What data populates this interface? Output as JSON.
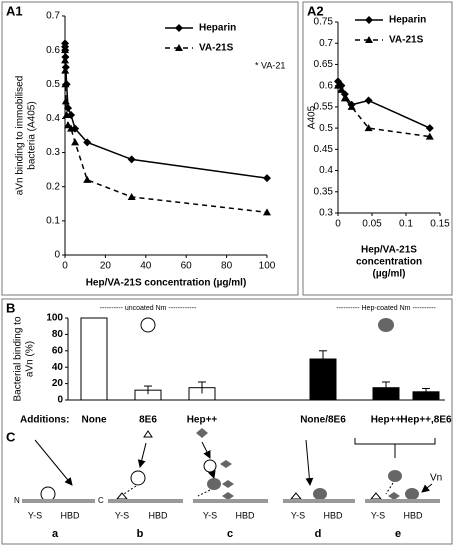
{
  "panels": [
    "A1",
    "A2",
    "B",
    "C"
  ],
  "chart_data": [
    {
      "type": "line",
      "ylabel": [
        "aVn binding to immobilised",
        "bacteria (A405)"
      ],
      "xlabel": [
        "Hep/VA-21S concentration (µg/ml)"
      ],
      "annotation": "* VA-21",
      "x": [
        0.01,
        0.03,
        0.1,
        0.2,
        0.4,
        0.8,
        1.5,
        3,
        5,
        11,
        33,
        100
      ],
      "series": [
        {
          "name": "Heparin",
          "color": "#000000",
          "marker": "diamond",
          "dashed": false,
          "values": [
            0.62,
            0.61,
            0.6,
            0.58,
            0.55,
            0.5,
            0.43,
            0.41,
            0.37,
            0.33,
            0.28,
            0.225
          ]
        },
        {
          "name": "VA-21S",
          "color": "#000000",
          "marker": "triangle",
          "dashed": true,
          "values": [
            0.6,
            0.57,
            0.54,
            0.5,
            0.45,
            0.41,
            0.38,
            0.37,
            0.33,
            0.22,
            0.17,
            0.125
          ]
        }
      ],
      "xlim": [
        0,
        100
      ],
      "xticks": [
        0,
        20,
        40,
        60,
        80,
        100
      ],
      "ylim": [
        0,
        0.7
      ],
      "yticks": [
        0,
        0.1,
        0.2,
        0.3,
        0.4,
        0.5,
        0.6,
        0.7
      ]
    },
    {
      "type": "line",
      "ylabel": [
        "A405"
      ],
      "xlabel": [
        "Hep/VA-21S",
        "concentration",
        "(µg/ml)"
      ],
      "x": [
        0,
        0.005,
        0.01,
        0.02,
        0.045,
        0.135
      ],
      "series": [
        {
          "name": "Heparin",
          "color": "#000000",
          "marker": "diamond",
          "dashed": false,
          "values": [
            0.61,
            0.6,
            0.58,
            0.555,
            0.565,
            0.5
          ]
        },
        {
          "name": "VA-21S",
          "color": "#000000",
          "marker": "triangle",
          "dashed": true,
          "values": [
            0.6,
            0.59,
            0.57,
            0.55,
            0.5,
            0.48
          ]
        }
      ],
      "xlim": [
        0,
        0.15
      ],
      "xticks": [
        0,
        0.05,
        0.1,
        0.15
      ],
      "ylim": [
        0.3,
        0.75
      ],
      "yticks": [
        0.3,
        0.35,
        0.4,
        0.45,
        0.5,
        0.55,
        0.6,
        0.65,
        0.7,
        0.75
      ]
    },
    {
      "type": "bar",
      "ylabel": [
        "Bacterial binding to",
        "aVn (%)"
      ],
      "row_label": "Additions:",
      "groups": [
        "---------- uncoated Nm ------------",
        "---------- Hep-coated Nm ----------"
      ],
      "categories": [
        "None",
        "8E6",
        "Hep++",
        "None/8E6",
        "Hep++",
        "Hep++,8E6"
      ],
      "values": [
        100,
        12,
        15,
        50,
        15,
        10
      ],
      "errors": [
        0,
        5,
        7,
        10,
        7,
        4
      ],
      "colors": [
        "#ffffff",
        "#ffffff",
        "#ffffff",
        "#000000",
        "#000000",
        "#000000"
      ],
      "ylim": [
        0,
        100
      ],
      "yticks": [
        0,
        20,
        40,
        60,
        80,
        100
      ]
    }
  ],
  "diagram": {
    "ends": [
      "N",
      "C"
    ],
    "vn": "Vn",
    "sites": [
      [
        "Y-S",
        "HBD"
      ],
      [
        "Y-S",
        "HBD"
      ],
      [
        "Y-S",
        "HBD"
      ],
      [
        "Y-S",
        "HBD"
      ],
      [
        "Y-S",
        "HBD"
      ]
    ],
    "letters": [
      "a",
      "b",
      "c",
      "d",
      "e"
    ]
  }
}
